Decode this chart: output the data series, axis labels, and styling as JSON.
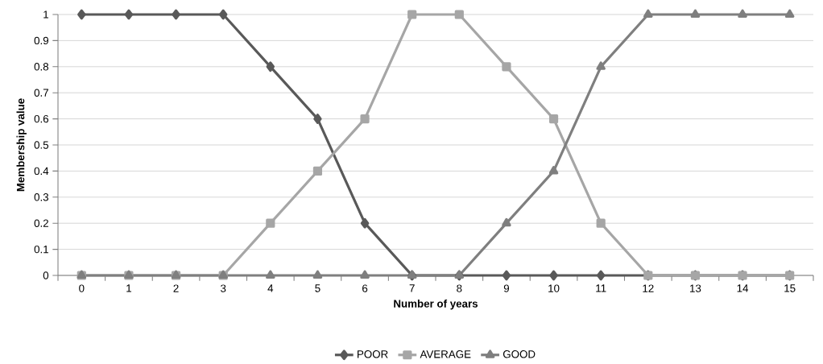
{
  "chart_data": {
    "type": "line",
    "xlabel": "Number of years",
    "ylabel": "Membership value",
    "categories": [
      "0",
      "1",
      "2",
      "3",
      "4",
      "5",
      "6",
      "7",
      "8",
      "9",
      "10",
      "11",
      "12",
      "13",
      "14",
      "15"
    ],
    "series": [
      {
        "name": "POOR",
        "color": "#595959",
        "marker": "diamond",
        "values": [
          1,
          1,
          1,
          1,
          0.8,
          0.6,
          0.2,
          0,
          0,
          0,
          0,
          0,
          0,
          0,
          0,
          0
        ]
      },
      {
        "name": "AVERAGE",
        "color": "#a6a6a6",
        "marker": "square",
        "values": [
          0,
          0,
          0,
          0,
          0.2,
          0.4,
          0.6,
          1,
          1,
          0.8,
          0.6,
          0.2,
          0,
          0,
          0,
          0
        ]
      },
      {
        "name": "GOOD",
        "color": "#7f7f7f",
        "marker": "triangle",
        "values": [
          0,
          0,
          0,
          0,
          0,
          0,
          0,
          0,
          0,
          0.2,
          0.4,
          0.8,
          1,
          1,
          1,
          1
        ]
      }
    ],
    "ylim": [
      0,
      1
    ],
    "yticks": [
      0,
      0.1,
      0.2,
      0.3,
      0.4,
      0.5,
      0.6,
      0.7,
      0.8,
      0.9,
      1
    ],
    "grid": "y",
    "legend": "bottom",
    "line_style": "solid"
  }
}
